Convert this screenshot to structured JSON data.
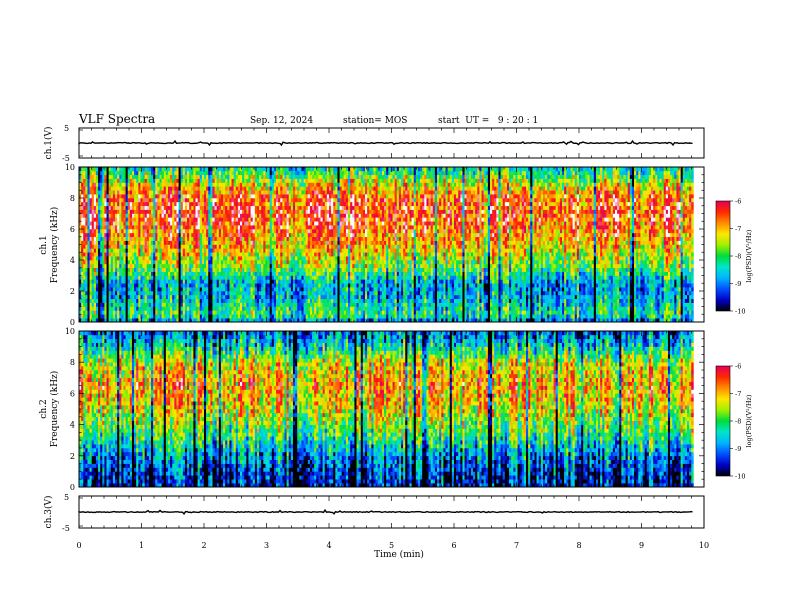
{
  "header": {
    "title": "VLF Spectra",
    "date": "Sep. 12, 2024",
    "station": "station= MOS",
    "start": "start  UT =   9 : 20 : 1"
  },
  "colors": {
    "ramp": [
      "#000000",
      "#0000c8",
      "#0050ff",
      "#00b4ff",
      "#00e6c8",
      "#00dc3c",
      "#a0f000",
      "#ffe600",
      "#ff8c00",
      "#ff2800",
      "#e6005a",
      "#ffffff"
    ],
    "trace": "#000000"
  },
  "chart_data": [
    {
      "type": "line",
      "panel": "ch1-waveform",
      "ylabel": "ch.1(V)",
      "ylim": [
        -5,
        5
      ],
      "yticks": [
        "5",
        "-5"
      ],
      "y_level": 0,
      "xlim": [
        0,
        10
      ]
    },
    {
      "type": "heatmap",
      "panel": "ch1-spectrogram",
      "ylabel_channel": "ch.1",
      "ylabel": "Frequency (kHz)",
      "ylim": [
        0,
        10
      ],
      "yticks": [
        "0",
        "2",
        "4",
        "6",
        "8",
        "10"
      ],
      "xlim": [
        0,
        10
      ],
      "x_end_data": 9.83,
      "intensity_profile": [
        {
          "f": 0,
          "v": 0.2
        },
        {
          "f": 0.5,
          "v": 0.45
        },
        {
          "f": 1.5,
          "v": 0.3
        },
        {
          "f": 2.5,
          "v": 0.28
        },
        {
          "f": 3.5,
          "v": 0.5
        },
        {
          "f": 5,
          "v": 0.68
        },
        {
          "f": 6.5,
          "v": 0.82
        },
        {
          "f": 8,
          "v": 0.8
        },
        {
          "f": 9,
          "v": 0.6
        },
        {
          "f": 10,
          "v": 0.35
        }
      ],
      "colorbar": {
        "label": "log(PSD)(V²/Hz)",
        "range": [
          -10,
          -6
        ],
        "ticks": [
          "-6",
          "-7",
          "-8",
          "-9",
          "-10"
        ]
      }
    },
    {
      "type": "heatmap",
      "panel": "ch2-spectrogram",
      "ylabel_channel": "ch.2",
      "ylabel": "Frequency (kHz)",
      "ylim": [
        0,
        10
      ],
      "yticks": [
        "0",
        "2",
        "4",
        "6",
        "8",
        "10"
      ],
      "xlim": [
        0,
        10
      ],
      "x_end_data": 9.83,
      "intensity_profile": [
        {
          "f": 0,
          "v": 0.1
        },
        {
          "f": 1,
          "v": 0.15
        },
        {
          "f": 2,
          "v": 0.25
        },
        {
          "f": 3,
          "v": 0.4
        },
        {
          "f": 4,
          "v": 0.52
        },
        {
          "f": 5,
          "v": 0.62
        },
        {
          "f": 6.5,
          "v": 0.72
        },
        {
          "f": 8,
          "v": 0.6
        },
        {
          "f": 9,
          "v": 0.35
        },
        {
          "f": 10,
          "v": 0.2
        }
      ],
      "colorbar": {
        "label": "log(PSD)(V²/Hz)",
        "range": [
          -10,
          -6
        ],
        "ticks": [
          "-6",
          "-7",
          "-8",
          "-9",
          "-10"
        ]
      }
    },
    {
      "type": "line",
      "panel": "ch3-waveform",
      "ylabel": "ch.3(V)",
      "ylim": [
        -5,
        5
      ],
      "yticks": [
        "5",
        "-5"
      ],
      "y_level": 0,
      "xlim": [
        0,
        10
      ],
      "xlabel": "Time (min)",
      "xticks": [
        "0",
        "1",
        "2",
        "3",
        "4",
        "5",
        "6",
        "7",
        "8",
        "9",
        "10"
      ]
    }
  ]
}
